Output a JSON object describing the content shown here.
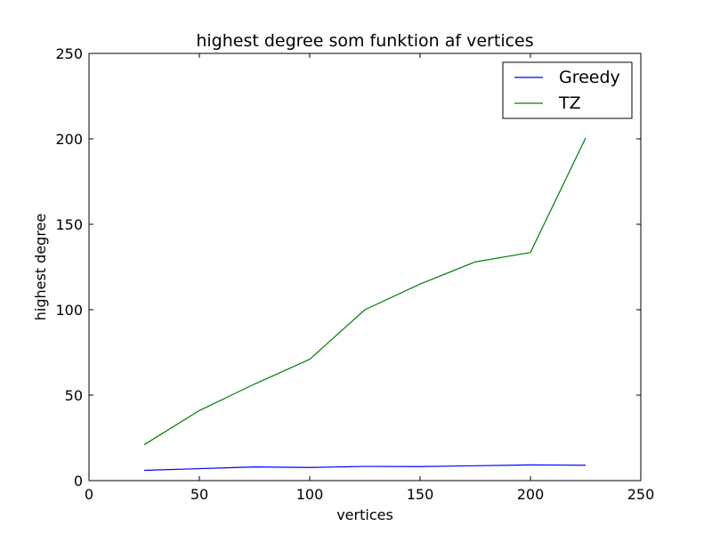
{
  "chart_data": {
    "type": "line",
    "title": "highest degree som funktion af vertices",
    "xlabel": "vertices",
    "ylabel": "highest degree",
    "xlim": [
      0,
      250
    ],
    "ylim": [
      0,
      250
    ],
    "xticks": [
      "0",
      "50",
      "100",
      "150",
      "200",
      "250"
    ],
    "yticks": [
      "0",
      "50",
      "100",
      "150",
      "200",
      "250"
    ],
    "grid": false,
    "legend_position": "top-right",
    "x": [
      25,
      50,
      75,
      100,
      125,
      150,
      175,
      200,
      225
    ],
    "series": [
      {
        "name": "Greedy",
        "color": "#0000ff",
        "values": [
          6,
          7,
          8,
          7.7,
          8.3,
          8.2,
          8.7,
          9.2,
          9
        ]
      },
      {
        "name": "TZ",
        "color": "#008000",
        "values": [
          21,
          41,
          56.5,
          71,
          100,
          115,
          128,
          133.5,
          200.5
        ]
      }
    ]
  }
}
